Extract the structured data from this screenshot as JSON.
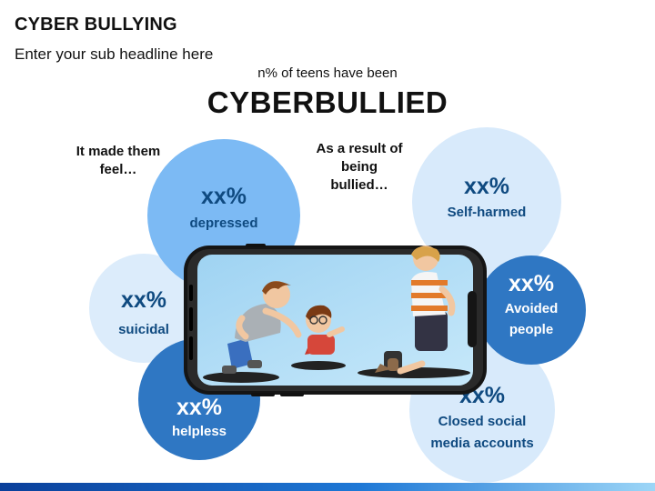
{
  "header": {
    "title": "CYBER BULLYING",
    "subtitle": "Enter your sub headline here"
  },
  "intro": {
    "lead": "n% of teens have been",
    "headline": "CYBERBULLIED"
  },
  "captions": {
    "left_line1": "It made them",
    "left_line2": "feel…",
    "right_line1": "As a result of",
    "right_line2": "being",
    "right_line3": "bullied…"
  },
  "left_stats": [
    {
      "value": "xx%",
      "label": "depressed"
    },
    {
      "value": "xx%",
      "label": "suicidal"
    },
    {
      "value": "xx%",
      "label": "helpless"
    }
  ],
  "right_stats": [
    {
      "value": "xx%",
      "label": "Self-harmed"
    },
    {
      "value": "xx%",
      "label_line1": "Avoided",
      "label_line2": "people"
    },
    {
      "value": "xx%",
      "label_line1": "Closed social",
      "label_line2": "media accounts"
    }
  ],
  "colors": {
    "dark_blue": "#2f77c3",
    "mid_blue": "#7cbaf4",
    "light_blue": "#d8eafb",
    "text_blue": "#0f4a80",
    "phone_body": "#111111",
    "screen_sky": "#a8d8f4"
  },
  "illustration": {
    "icon": "smartphone-with-bullying-scene-icon"
  }
}
